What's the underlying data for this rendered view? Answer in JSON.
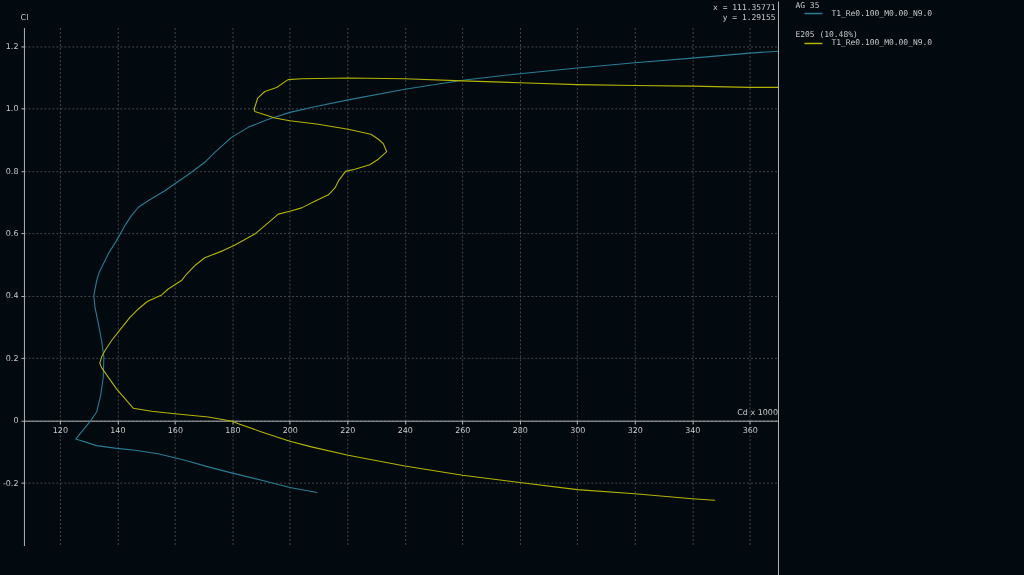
{
  "chart_data": {
    "type": "line",
    "xlabel": "Cd x 1000",
    "ylabel": "Cl",
    "xlim": [
      107.5,
      370
    ],
    "ylim": [
      -0.4,
      1.26
    ],
    "xticks": [
      120,
      140,
      160,
      180,
      200,
      220,
      240,
      260,
      280,
      300,
      320,
      340,
      360
    ],
    "yticks": [
      -0.2,
      0,
      0.2,
      0.4,
      0.6,
      0.8,
      {
        "value": 1,
        "label": "1.0"
      },
      1.2
    ],
    "grid": true,
    "legend": "top right",
    "line_style": "solid",
    "annotations": [
      "x = 111.35771",
      "y =   1.29155",
      "T1_Re0.100_M0.00_N9.0",
      "T1_Re0.100_M0.00_N9.0"
    ],
    "series": [
      {
        "name": "AG 35",
        "color": "#2a7d93",
        "x": [
          209.5,
          200,
          190.2,
          180,
          171.6,
          163.5,
          154.2,
          146.1,
          139.1,
          132.8,
          125.5,
          130.4,
          132.8,
          134.2,
          135.1,
          135.3,
          134.5,
          133.4,
          132.2,
          131.8,
          132.8,
          133.7,
          136.8,
          139.7,
          142.6,
          144.9,
          147.3,
          150.7,
          156.5,
          165.8,
          170.4,
          173.9,
          179.7,
          185.5,
          192.5,
          200,
          208.7,
          220.3,
          240,
          260.1,
          280,
          300,
          320,
          340,
          360,
          370
        ],
        "values": [
          -0.23,
          -0.214,
          -0.191,
          -0.168,
          -0.148,
          -0.127,
          -0.106,
          -0.095,
          -0.088,
          -0.08,
          -0.059,
          -0.004,
          0.028,
          0.081,
          0.14,
          0.204,
          0.257,
          0.31,
          0.364,
          0.401,
          0.449,
          0.476,
          0.534,
          0.577,
          0.625,
          0.657,
          0.684,
          0.705,
          0.737,
          0.796,
          0.828,
          0.86,
          0.908,
          0.94,
          0.966,
          0.988,
          1.006,
          1.028,
          1.062,
          1.091,
          1.112,
          1.13,
          1.147,
          1.162,
          1.178,
          1.184
        ]
      },
      {
        "name": "E205  (10.48%)",
        "color": "#b4b400",
        "x": [
          347.8,
          340,
          320,
          300,
          280,
          260.1,
          240,
          220.3,
          207.5,
          200,
          190.2,
          182.1,
          180,
          171.6,
          160,
          151.9,
          145.5,
          139.7,
          134.5,
          133.9,
          134.5,
          135.7,
          138,
          140.9,
          144.3,
          147.3,
          150.4,
          155.4,
          157.7,
          162.3,
          164.1,
          167.2,
          170.4,
          176.8,
          180.9,
          187.8,
          191.3,
          196,
          200,
          204.1,
          208.7,
          213.4,
          215.7,
          217.1,
          219.4,
          222.6,
          227.8,
          230.8,
          233.7,
          232.5,
          230.8,
          228.2,
          220.3,
          209.9,
          200,
          194.8,
          187.8,
          187.6,
          188.8,
          191.3,
          195.4,
          199.4,
          204.1,
          220.3,
          240,
          260.1,
          280,
          300,
          320,
          340,
          360,
          370
        ],
        "values": [
          -0.255,
          -0.25,
          -0.234,
          -0.221,
          -0.198,
          -0.175,
          -0.145,
          -0.111,
          -0.084,
          -0.066,
          -0.036,
          -0.01,
          -0.002,
          0.012,
          0.022,
          0.03,
          0.04,
          0.102,
          0.17,
          0.184,
          0.204,
          0.225,
          0.257,
          0.291,
          0.33,
          0.358,
          0.382,
          0.403,
          0.422,
          0.449,
          0.47,
          0.499,
          0.522,
          0.545,
          0.563,
          0.598,
          0.625,
          0.662,
          0.671,
          0.682,
          0.703,
          0.724,
          0.746,
          0.771,
          0.799,
          0.806,
          0.82,
          0.838,
          0.862,
          0.888,
          0.902,
          0.918,
          0.934,
          0.95,
          0.961,
          0.97,
          0.991,
          0.998,
          1.034,
          1.055,
          1.068,
          1.093,
          1.096,
          1.098,
          1.096,
          1.089,
          1.083,
          1.077,
          1.074,
          1.072,
          1.068,
          1.068
        ]
      }
    ]
  }
}
